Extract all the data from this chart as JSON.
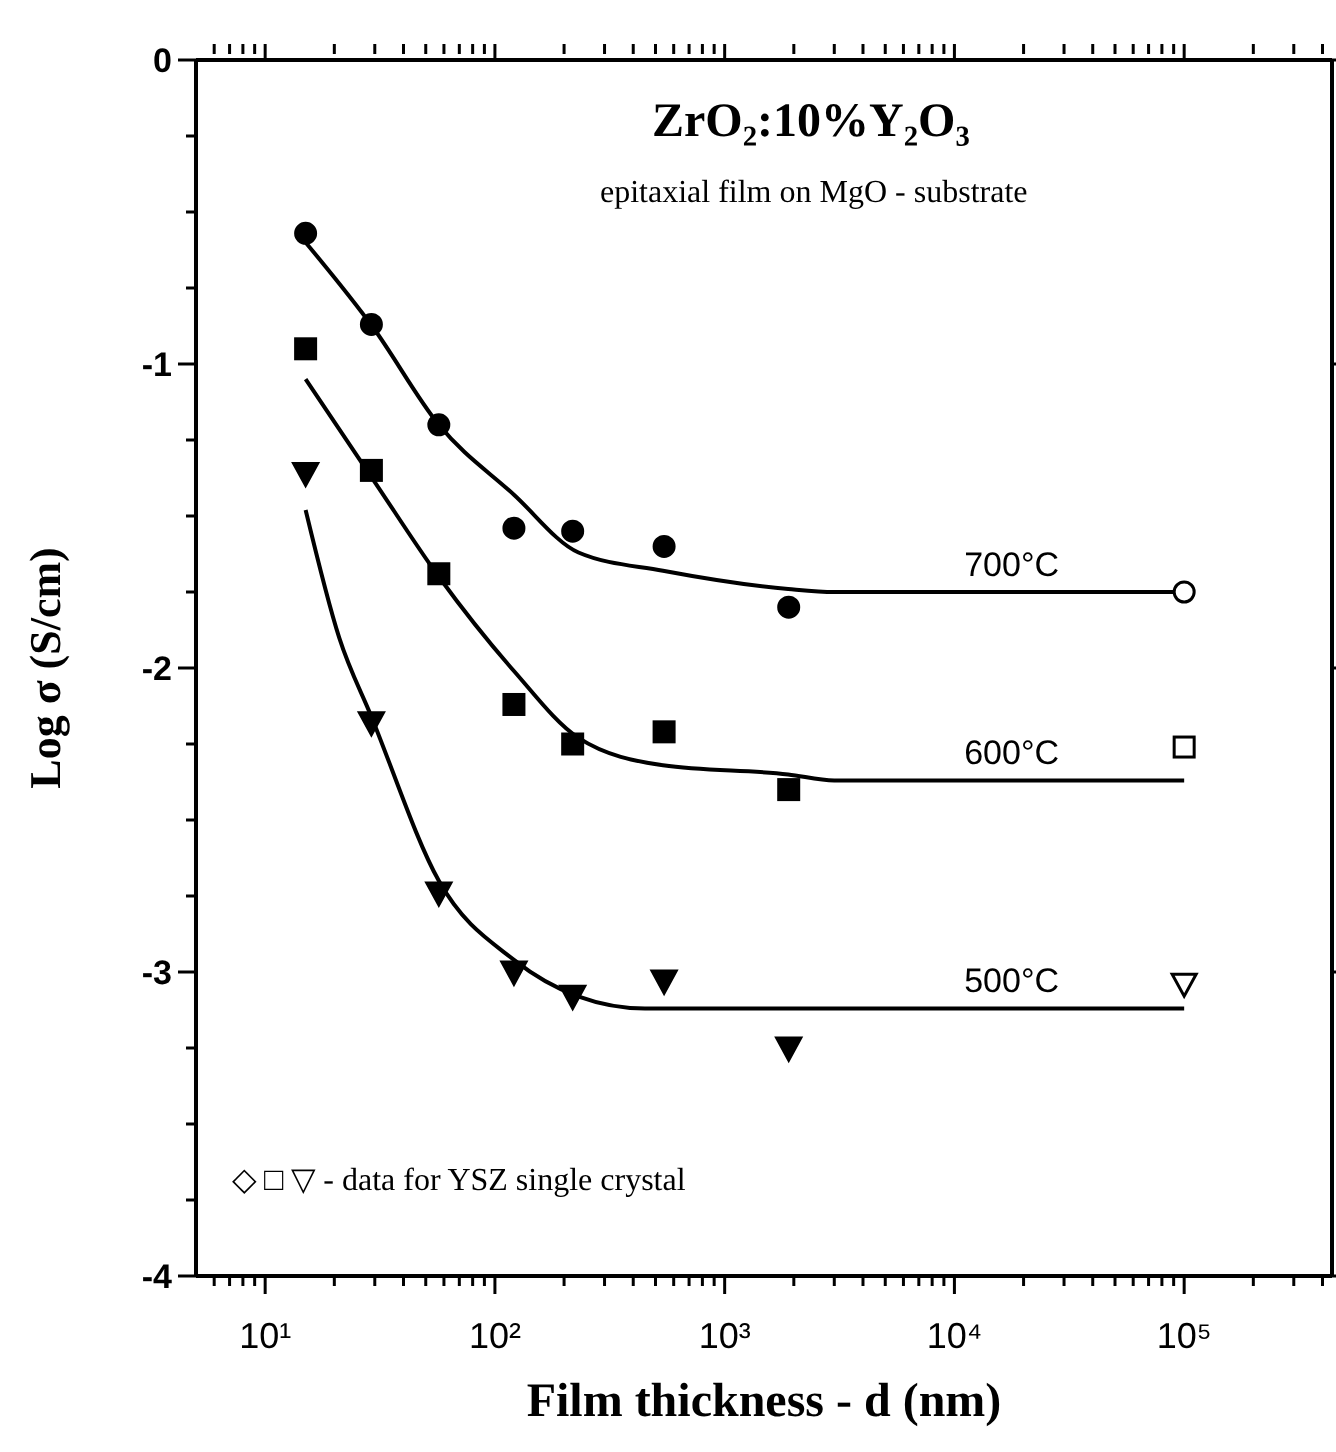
{
  "chart_data": {
    "type": "scatter",
    "xlabel": "Film thickness - d (nm)",
    "ylabel": "Log σ (S/cm)",
    "log": "x",
    "line_style": "solid",
    "xlim": [
      5,
      440000
    ],
    "xticks": [
      {
        "value": 6,
        "label": null
      },
      {
        "value": 7,
        "label": null
      },
      {
        "value": 8,
        "label": null
      },
      {
        "value": 9,
        "label": null
      },
      {
        "value": 10,
        "label": "10¹"
      },
      {
        "value": 20,
        "label": null
      },
      {
        "value": 30,
        "label": null
      },
      {
        "value": 40,
        "label": null
      },
      {
        "value": 50,
        "label": null
      },
      {
        "value": 60,
        "label": null
      },
      {
        "value": 70,
        "label": null
      },
      {
        "value": 80,
        "label": null
      },
      {
        "value": 90,
        "label": null
      },
      {
        "value": 100,
        "label": "10²"
      },
      {
        "value": 200,
        "label": null
      },
      {
        "value": 300,
        "label": null
      },
      {
        "value": 400,
        "label": null
      },
      {
        "value": 500,
        "label": null
      },
      {
        "value": 600,
        "label": null
      },
      {
        "value": 700,
        "label": null
      },
      {
        "value": 800,
        "label": null
      },
      {
        "value": 900,
        "label": null
      },
      {
        "value": 1000,
        "label": "10³"
      },
      {
        "value": 2000,
        "label": null
      },
      {
        "value": 3000,
        "label": null
      },
      {
        "value": 4000,
        "label": null
      },
      {
        "value": 5000,
        "label": null
      },
      {
        "value": 6000,
        "label": null
      },
      {
        "value": 7000,
        "label": null
      },
      {
        "value": 8000,
        "label": null
      },
      {
        "value": 9000,
        "label": null
      },
      {
        "value": 10000,
        "label": "10⁴"
      },
      {
        "value": 20000,
        "label": null
      },
      {
        "value": 30000,
        "label": null
      },
      {
        "value": 40000,
        "label": null
      },
      {
        "value": 50000,
        "label": null
      },
      {
        "value": 60000,
        "label": null
      },
      {
        "value": 70000,
        "label": null
      },
      {
        "value": 80000,
        "label": null
      },
      {
        "value": 90000,
        "label": null
      },
      {
        "value": 100000,
        "label": "10⁵"
      },
      {
        "value": 200000,
        "label": null
      },
      {
        "value": 300000,
        "label": null
      },
      {
        "value": 400000,
        "label": null
      }
    ],
    "ylim": [
      -4,
      0
    ],
    "yticks": [
      -4,
      {
        "value": -3.75,
        "label": null
      },
      {
        "value": -3.5,
        "label": null
      },
      {
        "value": -3.25,
        "label": null
      },
      -3,
      {
        "value": -2.75,
        "label": null
      },
      {
        "value": -2.5,
        "label": null
      },
      {
        "value": -2.25,
        "label": null
      },
      -2,
      {
        "value": -1.75,
        "label": null
      },
      {
        "value": -1.5,
        "label": null
      },
      {
        "value": -1.25,
        "label": null
      },
      -1,
      {
        "value": -0.75,
        "label": null
      },
      {
        "value": -0.5,
        "label": null
      },
      {
        "value": -0.25,
        "label": null
      },
      0
    ],
    "annotations": [
      "ZrO₂:10%Y₂O₃",
      "epitaxial film on MgO - substrate",
      "◇ □ ▽ - data for YSZ single crystal"
    ],
    "series": [
      {
        "marker": "circle",
        "color": "#000000",
        "x": [
          15,
          29,
          57,
          121,
          218,
          545,
          1900
        ],
        "values": [
          -0.57,
          -0.87,
          -1.2,
          -1.54,
          -1.55,
          -1.6,
          -1.8
        ]
      },
      {
        "marker": "square",
        "color": "#000000",
        "x": [
          15,
          29,
          57,
          121,
          218,
          545,
          1900
        ],
        "values": [
          -0.95,
          -1.35,
          -1.69,
          -2.12,
          -2.25,
          -2.21,
          -2.4
        ]
      },
      {
        "marker": "triangle",
        "color": "#000000",
        "x": [
          15,
          29,
          57,
          121,
          218,
          545,
          1900
        ],
        "values": [
          -1.36,
          -2.18,
          -2.74,
          -3.0,
          -3.08,
          -3.03,
          -3.25
        ]
      },
      {
        "marker": "circle",
        "color": "#ffffff",
        "x": [
          100000
        ],
        "values": [
          -1.75
        ]
      },
      {
        "marker": "square",
        "color": "#ffffff",
        "x": [
          100000
        ],
        "values": [
          -2.26
        ]
      },
      {
        "marker": "triangle",
        "color": "#ffffff",
        "x": [
          100000
        ],
        "values": [
          -3.04
        ]
      },
      {
        "type": "line",
        "marker": "none",
        "name": "700°C",
        "color": "#000000",
        "x": [
          15,
          29.5,
          57,
          121,
          231,
          539,
          1890,
          3000,
          100000
        ],
        "values": [
          -0.6,
          -0.88,
          -1.2,
          -1.43,
          -1.62,
          -1.68,
          -1.74,
          -1.75,
          -1.75
        ]
      },
      {
        "type": "line",
        "marker": "none",
        "name": "600°C",
        "color": "#000000",
        "x": [
          15,
          29.5,
          57,
          121,
          231,
          539,
          1890,
          3000,
          100000
        ],
        "values": [
          -1.05,
          -1.38,
          -1.7,
          -2.01,
          -2.23,
          -2.32,
          -2.35,
          -2.37,
          -2.37
        ]
      },
      {
        "type": "line",
        "marker": "none",
        "name": "500°C",
        "color": "#000000",
        "x": [
          15,
          21,
          29,
          57,
          121,
          230,
          450,
          3000,
          100000
        ],
        "values": [
          -1.48,
          -1.9,
          -2.16,
          -2.7,
          -2.96,
          -3.08,
          -3.12,
          -3.12,
          -3.12
        ]
      }
    ]
  }
}
